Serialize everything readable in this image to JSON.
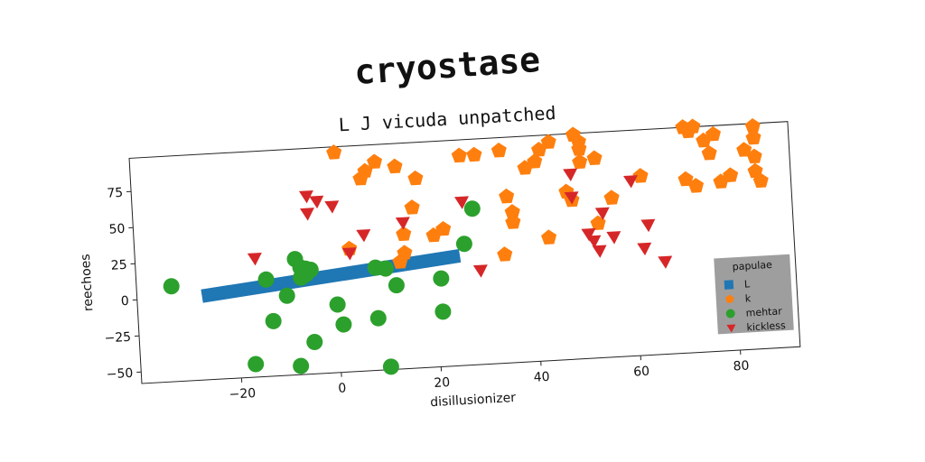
{
  "figure": {
    "title": "cryostase"
  },
  "chart_data": {
    "type": "scatter",
    "title": "L J vicuda unpatched",
    "xlabel": "disillusionizer",
    "ylabel": "reechoes",
    "xlim": [
      -40,
      92
    ],
    "ylim": [
      -58,
      98
    ],
    "xticks": [
      -20,
      0,
      20,
      40,
      60,
      80
    ],
    "yticks": [
      -50,
      -25,
      0,
      25,
      50,
      75
    ],
    "grid": false,
    "legend": {
      "title": "papulae",
      "placement": "bottom-right",
      "entries": [
        "L",
        "k",
        "mehtar",
        "kickless"
      ]
    },
    "series": [
      {
        "name": "L",
        "marker": "line",
        "color": "#1f77b4",
        "x": [
          -27,
          25
        ],
        "y": [
          0,
          18
        ]
      },
      {
        "name": "k",
        "marker": "pentagon",
        "color": "#ff7f0e",
        "points": [
          [
            1,
            94
          ],
          [
            6,
            75
          ],
          [
            7,
            80
          ],
          [
            9,
            86
          ],
          [
            13,
            82
          ],
          [
            17,
            73
          ],
          [
            16,
            53
          ],
          [
            14,
            35
          ],
          [
            14,
            22
          ],
          [
            13,
            16
          ],
          [
            20,
            33
          ],
          [
            22,
            37
          ],
          [
            3,
            27
          ],
          [
            26,
            87
          ],
          [
            29,
            87
          ],
          [
            34,
            17
          ],
          [
            35,
            57
          ],
          [
            36,
            46
          ],
          [
            36,
            39
          ],
          [
            34,
            89
          ],
          [
            39,
            76
          ],
          [
            41,
            80
          ],
          [
            42,
            88
          ],
          [
            44,
            93
          ],
          [
            43,
            27
          ],
          [
            47,
            58
          ],
          [
            48,
            52
          ],
          [
            49,
            97
          ],
          [
            50,
            92
          ],
          [
            50,
            87
          ],
          [
            50,
            78
          ],
          [
            53,
            80
          ],
          [
            53,
            35
          ],
          [
            56,
            52
          ],
          [
            62,
            66
          ],
          [
            71,
            98
          ],
          [
            72,
            95
          ],
          [
            73,
            98
          ],
          [
            75,
            88
          ],
          [
            76,
            79
          ],
          [
            77,
            92
          ],
          [
            71,
            62
          ],
          [
            73,
            57
          ],
          [
            78,
            59
          ],
          [
            80,
            63
          ],
          [
            83,
            80
          ],
          [
            85,
            96
          ],
          [
            85,
            88
          ],
          [
            85,
            75
          ],
          [
            85,
            65
          ],
          [
            86,
            58
          ]
        ]
      },
      {
        "name": "mehtar",
        "marker": "circle",
        "color": "#2ca02c",
        "points": [
          [
            -33,
            8
          ],
          [
            -17,
            -49
          ],
          [
            -14,
            9
          ],
          [
            -13,
            -20
          ],
          [
            -10,
            -3
          ],
          [
            -8,
            22
          ],
          [
            -7,
            16
          ],
          [
            -7,
            9
          ],
          [
            -6,
            11
          ],
          [
            -6,
            15
          ],
          [
            -5,
            14
          ],
          [
            -5,
            -36
          ],
          [
            -8,
            -52
          ],
          [
            0,
            -11
          ],
          [
            1,
            -25
          ],
          [
            8,
            13
          ],
          [
            8,
            -22
          ],
          [
            10,
            12
          ],
          [
            12,
            0
          ],
          [
            10,
            -56
          ],
          [
            21,
            3
          ],
          [
            21,
            -20
          ],
          [
            26,
            26
          ],
          [
            28,
            50
          ]
        ]
      },
      {
        "name": "kickless",
        "marker": "triangle-down",
        "color": "#d62728",
        "points": [
          [
            -16,
            24
          ],
          [
            -5,
            65
          ],
          [
            -5,
            53
          ],
          [
            -3,
            61
          ],
          [
            0,
            57
          ],
          [
            3,
            24
          ],
          [
            6,
            36
          ],
          [
            14,
            43
          ],
          [
            26,
            55
          ],
          [
            29,
            7
          ],
          [
            48,
            70
          ],
          [
            48,
            54
          ],
          [
            51,
            28
          ],
          [
            52,
            23
          ],
          [
            53,
            16
          ],
          [
            54,
            42
          ],
          [
            56,
            25
          ],
          [
            60,
            63
          ],
          [
            62,
            16
          ],
          [
            63,
            32
          ],
          [
            66,
            6
          ]
        ]
      }
    ]
  }
}
